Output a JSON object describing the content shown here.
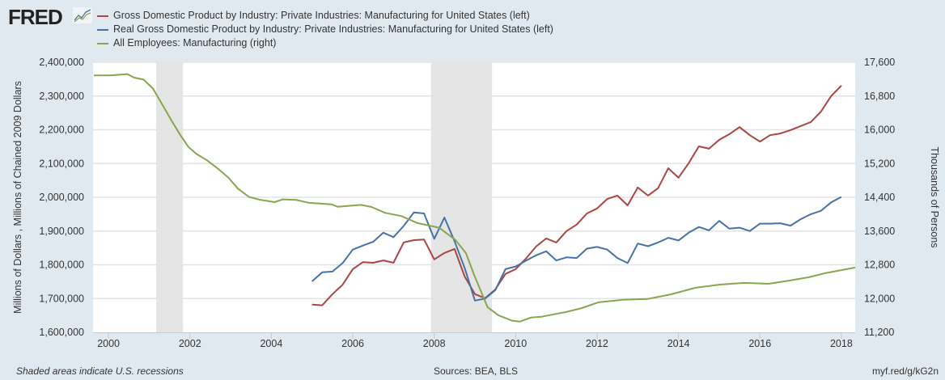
{
  "header": {
    "logo_text": "FRED",
    "legend": [
      {
        "label": "Gross Domestic Product by Industry: Private Industries: Manufacturing for United States (left)",
        "color": "#aa4643"
      },
      {
        "label": "Real Gross Domestic Product by Industry: Private Industries: Manufacturing for United States (left)",
        "color": "#4572a7"
      },
      {
        "label": "All Employees: Manufacturing (right)",
        "color": "#89a54e"
      }
    ]
  },
  "footer": {
    "note": "Shaded areas indicate U.S. recessions",
    "sources": "Sources: BEA, BLS",
    "link": "myf.red/g/kG2n"
  },
  "chart_data": {
    "type": "line",
    "ylabel_left": "Millions of Dollars , Millions of Chained 2009 Dollars",
    "ylabel_right": "Thousands of Persons",
    "xlim": [
      1999.62,
      2018.34
    ],
    "ylim_left": [
      1600000,
      2400000
    ],
    "ylim_right": [
      11200,
      17600
    ],
    "x_ticks": [
      "2000",
      "2002",
      "2004",
      "2006",
      "2008",
      "2010",
      "2012",
      "2014",
      "2016",
      "2018"
    ],
    "y_ticks_left": [
      "1,600,000",
      "1,700,000",
      "1,800,000",
      "1,900,000",
      "2,000,000",
      "2,100,000",
      "2,200,000",
      "2,300,000",
      "2,400,000"
    ],
    "y_ticks_right": [
      "11,200",
      "12,000",
      "12,800",
      "13,600",
      "14,400",
      "15,200",
      "16,000",
      "16,800",
      "17,600"
    ],
    "grid": true,
    "recessions": [
      [
        2001.17,
        2001.83
      ],
      [
        2007.92,
        2009.42
      ]
    ],
    "series": [
      {
        "name": "Gross Domestic Product by Industry: Private Industries: Manufacturing for United States (left)",
        "axis": "left",
        "color": "#aa4643",
        "start": 2005,
        "step": 0.25,
        "values": [
          1682000,
          1680000,
          1713000,
          1741000,
          1787000,
          1808000,
          1806000,
          1813000,
          1806000,
          1866000,
          1873000,
          1875000,
          1816000,
          1835000,
          1847000,
          1765000,
          1713000,
          1701000,
          1727000,
          1773000,
          1787000,
          1818000,
          1854000,
          1878000,
          1866000,
          1900000,
          1919000,
          1952000,
          1967000,
          1995000,
          2005000,
          1976000,
          2029000,
          2005000,
          2027000,
          2086000,
          2058000,
          2101000,
          2151000,
          2144000,
          2170000,
          2187000,
          2208000,
          2184000,
          2165000,
          2184000,
          2189000,
          2199000,
          2211000,
          2223000,
          2254000,
          2300000,
          2331000
        ]
      },
      {
        "name": "Real Gross Domestic Product by Industry: Private Industries: Manufacturing for United States (left)",
        "axis": "left",
        "color": "#4572a7",
        "start": 2005,
        "step": 0.25,
        "values": [
          1751000,
          1778000,
          1780000,
          1805000,
          1845000,
          1857000,
          1868000,
          1895000,
          1882000,
          1915000,
          1955000,
          1952000,
          1877000,
          1940000,
          1870000,
          1790000,
          1694000,
          1700000,
          1725000,
          1787000,
          1795000,
          1812000,
          1828000,
          1840000,
          1813000,
          1822000,
          1820000,
          1848000,
          1853000,
          1845000,
          1820000,
          1805000,
          1863000,
          1855000,
          1866000,
          1880000,
          1872000,
          1895000,
          1912000,
          1902000,
          1930000,
          1907000,
          1910000,
          1900000,
          1922000,
          1922000,
          1923000,
          1916000,
          1935000,
          1950000,
          1960000,
          1985000,
          2001000
        ]
      },
      {
        "name": "All Employees: Manufacturing (right)",
        "axis": "right",
        "color": "#89a54e",
        "points": [
          [
            1999.64,
            17288
          ],
          [
            2000.03,
            17290
          ],
          [
            2000.46,
            17320
          ],
          [
            2000.63,
            17236
          ],
          [
            2000.86,
            17190
          ],
          [
            2001.09,
            16980
          ],
          [
            2001.29,
            16650
          ],
          [
            2001.56,
            16200
          ],
          [
            2001.76,
            15880
          ],
          [
            2001.96,
            15595
          ],
          [
            2002.15,
            15435
          ],
          [
            2002.42,
            15275
          ],
          [
            2002.68,
            15085
          ],
          [
            2002.95,
            14860
          ],
          [
            2003.18,
            14605
          ],
          [
            2003.45,
            14410
          ],
          [
            2003.74,
            14336
          ],
          [
            2004.08,
            14285
          ],
          [
            2004.28,
            14350
          ],
          [
            2004.61,
            14336
          ],
          [
            2004.94,
            14266
          ],
          [
            2005.2,
            14253
          ],
          [
            2005.47,
            14233
          ],
          [
            2005.63,
            14176
          ],
          [
            2006.2,
            14220
          ],
          [
            2006.46,
            14170
          ],
          [
            2006.8,
            14030
          ],
          [
            2007.19,
            13955
          ],
          [
            2007.59,
            13788
          ],
          [
            2008.12,
            13680
          ],
          [
            2008.52,
            13390
          ],
          [
            2008.78,
            13075
          ],
          [
            2008.98,
            12560
          ],
          [
            2009.31,
            11795
          ],
          [
            2009.58,
            11600
          ],
          [
            2009.91,
            11475
          ],
          [
            2010.11,
            11455
          ],
          [
            2010.38,
            11550
          ],
          [
            2010.64,
            11570
          ],
          [
            2011.24,
            11680
          ],
          [
            2011.63,
            11775
          ],
          [
            2012.03,
            11910
          ],
          [
            2012.63,
            11970
          ],
          [
            2013.23,
            11990
          ],
          [
            2013.82,
            12100
          ],
          [
            2014.42,
            12255
          ],
          [
            2015.02,
            12330
          ],
          [
            2015.61,
            12370
          ],
          [
            2016.21,
            12350
          ],
          [
            2016.71,
            12425
          ],
          [
            2017.2,
            12505
          ],
          [
            2017.6,
            12600
          ],
          [
            2018.34,
            12735
          ]
        ]
      }
    ]
  }
}
